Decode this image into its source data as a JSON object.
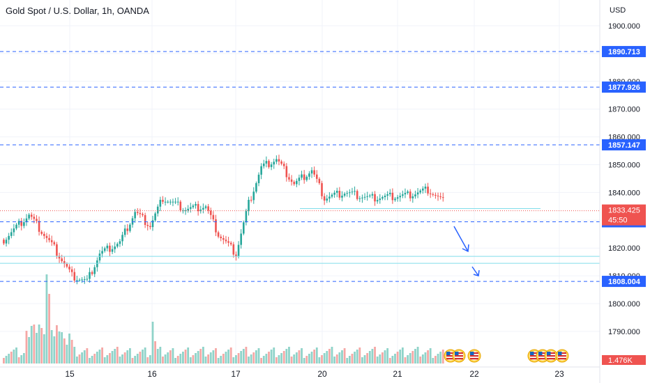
{
  "header": {
    "title": "Gold Spot / U.S. Dollar, 1h, OANDA"
  },
  "colors": {
    "up": "#26a69a",
    "down": "#ef5350",
    "level": "#2962ff",
    "current": "#ef5350",
    "support": "#80deea",
    "vol_up": "#8fd3c9",
    "vol_down": "#f5a7a5"
  },
  "chart_data": {
    "type": "candlestick",
    "currency_label": "USD",
    "y_ticks": [
      "1790.000",
      "1800.000",
      "1810.000",
      "1820.000",
      "1830.000",
      "1840.000",
      "1850.000",
      "1860.000",
      "1870.000",
      "1880.000",
      "1890.000",
      "1900.000"
    ],
    "x_ticks": [
      "15",
      "16",
      "17",
      "20",
      "21",
      "22",
      "23"
    ],
    "levels": [
      {
        "value": 1890.713,
        "label": "1890.713"
      },
      {
        "value": 1877.926,
        "label": "1877.926"
      },
      {
        "value": 1857.147,
        "label": "1857.147"
      },
      {
        "value": 1829.452,
        "label": "1829.452"
      },
      {
        "value": 1808.004,
        "label": "1808.004"
      }
    ],
    "current": {
      "value": 1833.425,
      "label": "1833.425",
      "countdown": "45:50"
    },
    "support_zones": [
      1834.2,
      1817.0,
      1814.5
    ],
    "volume_label": "1.476K",
    "events_icon": "us-flag-icon"
  }
}
